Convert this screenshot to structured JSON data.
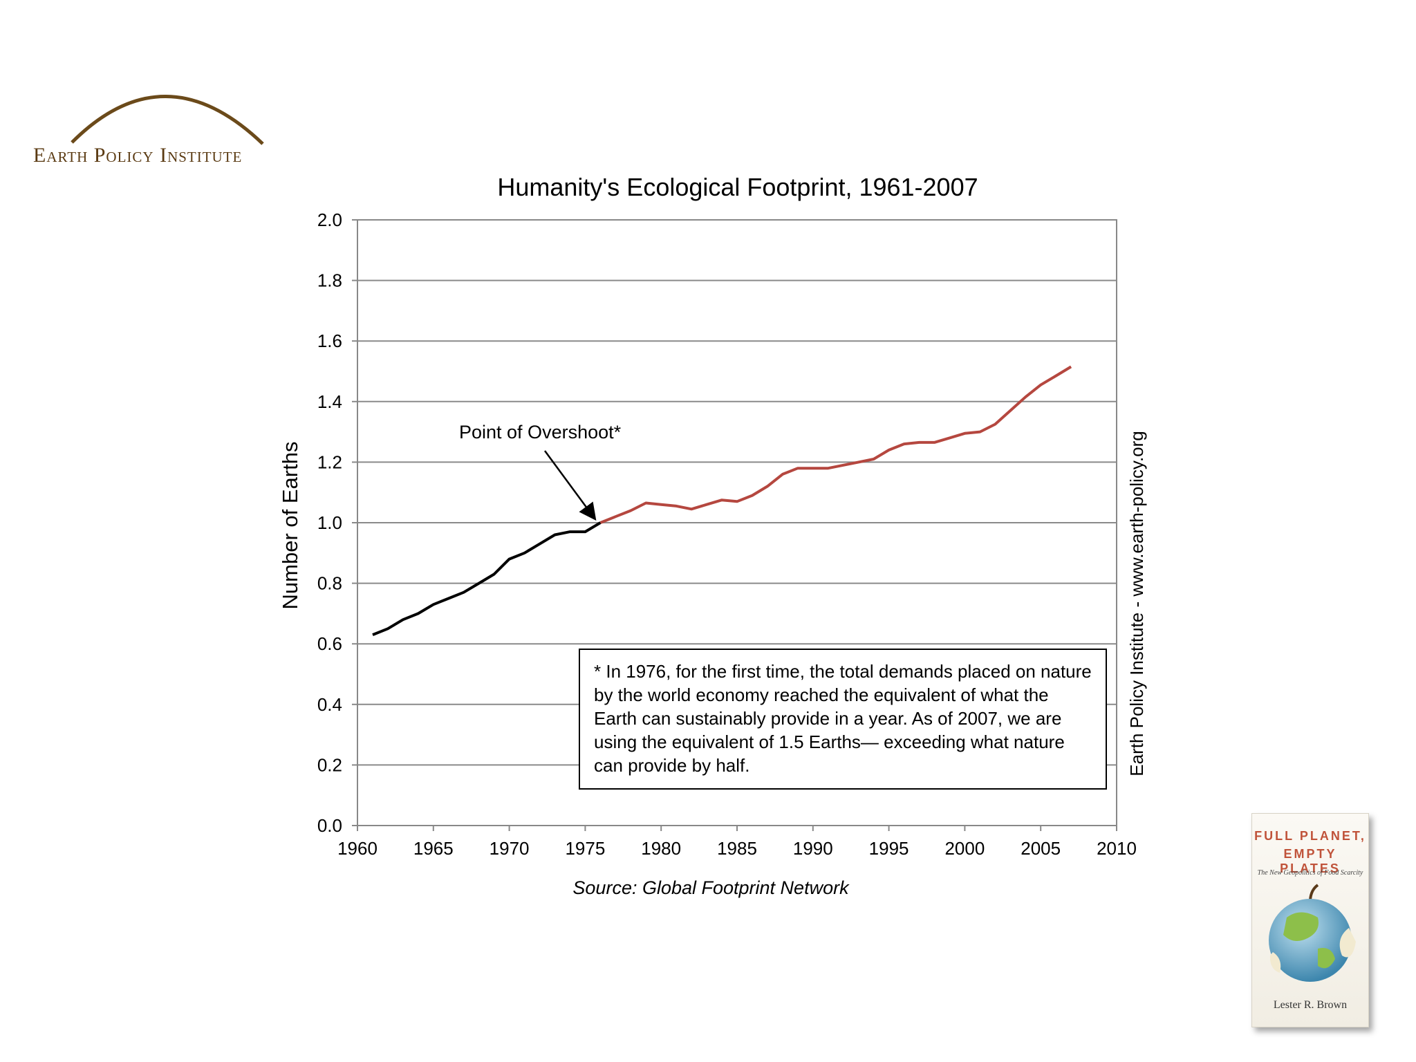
{
  "logo": {
    "text": "Earth Policy Institute",
    "arc_color": "#6b4a1a"
  },
  "chart_data": {
    "type": "line",
    "title": "Humanity's Ecological Footprint, 1961-2007",
    "xlabel": "",
    "ylabel": "Number of Earths",
    "xlim": [
      1960,
      2010
    ],
    "ylim": [
      0.0,
      2.0
    ],
    "x_ticks": [
      "1960",
      "1965",
      "1970",
      "1975",
      "1980",
      "1985",
      "1990",
      "1995",
      "2000",
      "2005",
      "2010"
    ],
    "y_ticks": [
      "0.0",
      "0.2",
      "0.4",
      "0.6",
      "0.8",
      "1.0",
      "1.2",
      "1.4",
      "1.6",
      "1.8",
      "2.0"
    ],
    "grid": "horizontal",
    "series": [
      {
        "color": "#000000",
        "x": [
          1961,
          1962,
          1963,
          1964,
          1965,
          1966,
          1967,
          1968,
          1969,
          1970,
          1971,
          1972,
          1973,
          1974,
          1975,
          1976
        ],
        "values": [
          0.63,
          0.65,
          0.68,
          0.7,
          0.73,
          0.75,
          0.77,
          0.8,
          0.83,
          0.88,
          0.9,
          0.93,
          0.96,
          0.97,
          0.97,
          1.0
        ]
      },
      {
        "color": "#b5473f",
        "x": [
          1976,
          1977,
          1978,
          1979,
          1980,
          1981,
          1982,
          1983,
          1984,
          1985,
          1986,
          1987,
          1988,
          1989,
          1990,
          1991,
          1992,
          1993,
          1994,
          1995,
          1996,
          1997,
          1998,
          1999,
          2000,
          2001,
          2002,
          2003,
          2004,
          2005,
          2006,
          2007
        ],
        "values": [
          1.0,
          1.02,
          1.04,
          1.065,
          1.06,
          1.055,
          1.045,
          1.06,
          1.075,
          1.07,
          1.09,
          1.12,
          1.16,
          1.18,
          1.18,
          1.18,
          1.19,
          1.2,
          1.21,
          1.24,
          1.26,
          1.265,
          1.265,
          1.28,
          1.295,
          1.3,
          1.325,
          1.37,
          1.415,
          1.455,
          1.485,
          1.515
        ]
      }
    ],
    "annotation": {
      "text": "Point of Overshoot*",
      "x": 1976,
      "y": 1.0
    },
    "source": "Source: Global Footprint Network",
    "side_label": "Earth Policy Institute - www.earth-policy.org",
    "note": "* In 1976, for the first time, the total demands placed on nature by the world economy reached the equivalent of what the Earth can sustainably provide in a year. As of 2007, we are using the equivalent of 1.5 Earths— exceeding what nature can provide by half."
  },
  "book": {
    "title_line1": "FULL PLANET,",
    "title_line2": "EMPTY PLATES",
    "subtitle": "The New Geopolitics of Food Scarcity",
    "author": "Lester R. Brown"
  }
}
